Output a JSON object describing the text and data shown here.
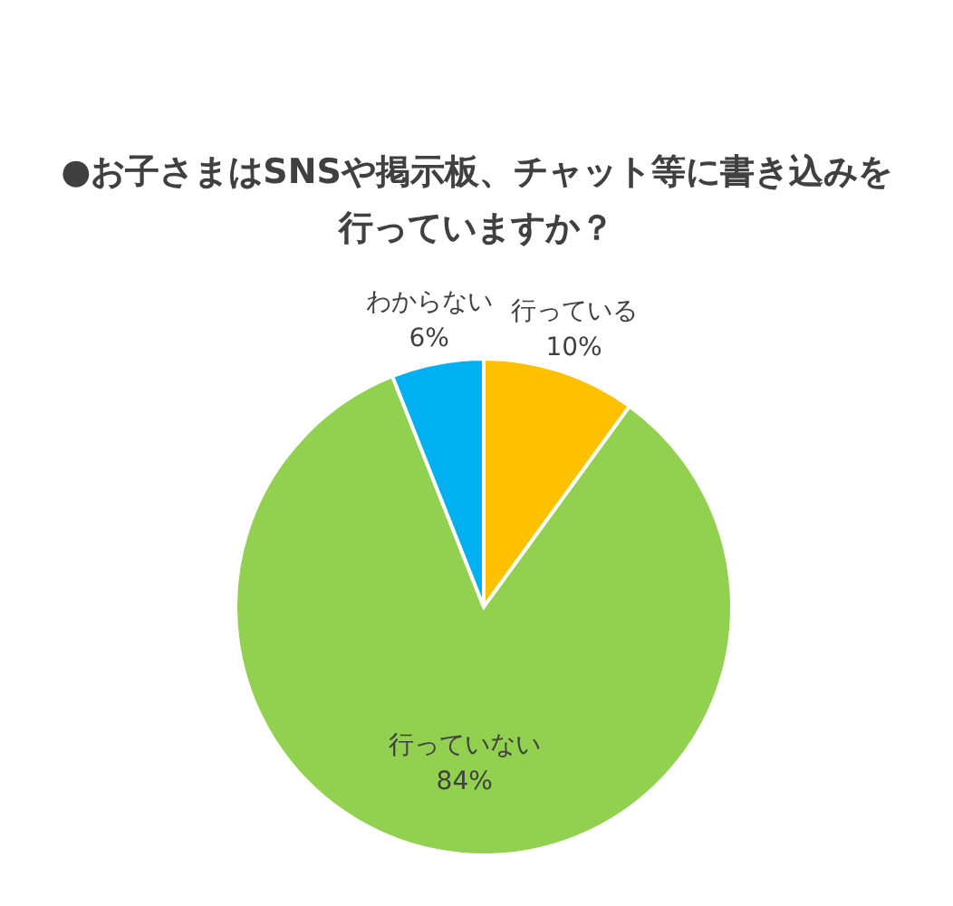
{
  "chart_data": {
    "type": "pie",
    "title": "●お子さまはSNSや掲示板、チャット等に書き込みを行っていますか？",
    "categories": [
      "行っている",
      "行っていない",
      "わからない"
    ],
    "values": [
      10,
      84,
      6
    ],
    "colors": [
      "#ffc000",
      "#92d050",
      "#00b0f0"
    ],
    "value_labels": [
      "10%",
      "84%",
      "6%"
    ]
  }
}
